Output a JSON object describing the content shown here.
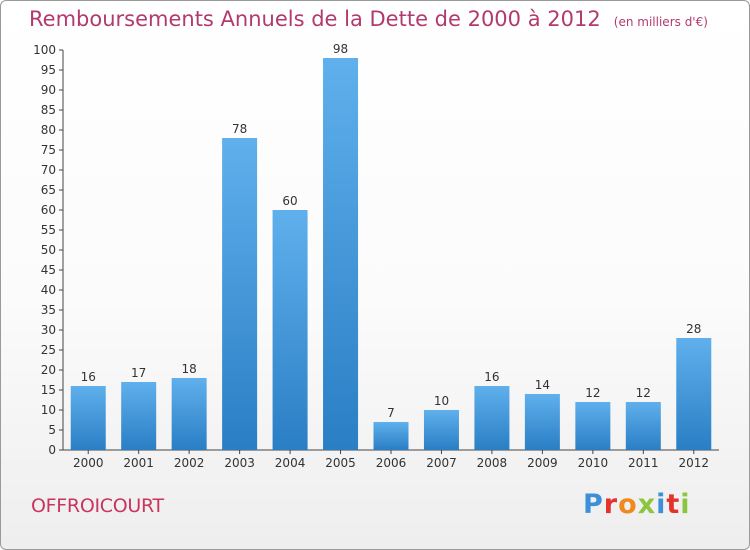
{
  "chart_data": {
    "type": "bar",
    "title": "Remboursements Annuels de la Dette de 2000 à 2012",
    "subtitle": "(en milliers d'€)",
    "categories": [
      "2000",
      "2001",
      "2002",
      "2003",
      "2004",
      "2005",
      "2006",
      "2007",
      "2008",
      "2009",
      "2010",
      "2011",
      "2012"
    ],
    "values": [
      16,
      17,
      18,
      78,
      60,
      98,
      7,
      10,
      16,
      14,
      12,
      12,
      28
    ],
    "ylim": [
      0,
      100
    ],
    "yticks": [
      0,
      5,
      10,
      15,
      20,
      25,
      30,
      35,
      40,
      45,
      50,
      55,
      60,
      65,
      70,
      75,
      80,
      85,
      90,
      95,
      100
    ],
    "grid": false,
    "bar_color": "#4a9fe0",
    "data_labels": true
  },
  "footer": {
    "town": "OFFROICOURT",
    "logo_text": "Proxiti"
  },
  "colors": {
    "title": "#b23a6e",
    "town": "#c8365f"
  }
}
